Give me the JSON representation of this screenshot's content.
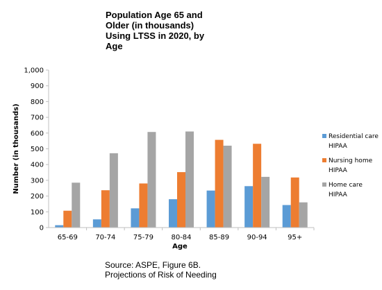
{
  "chart_data": {
    "type": "bar",
    "title_lines": [
      "Population Age 65 and",
      "Older (in thousands)",
      "Using LTSS in 2020, by",
      "Age"
    ],
    "xlabel": "Age",
    "ylabel": "Number (in thousands)",
    "ylim": [
      0,
      1000
    ],
    "yticks": [
      0,
      100,
      200,
      300,
      400,
      500,
      600,
      700,
      800,
      900,
      1000
    ],
    "ytick_labels": [
      "0",
      "100",
      "200",
      "300",
      "400",
      "500",
      "600",
      "700",
      "800",
      "900",
      "1,000"
    ],
    "categories": [
      "65-69",
      "70-74",
      "75-79",
      "80-84",
      "85-89",
      "90-94",
      "95+"
    ],
    "series": [
      {
        "name_lines": [
          "Residential care",
          "HIPAA"
        ],
        "color": "#5b9bd5",
        "values": [
          15,
          52,
          122,
          180,
          235,
          263,
          143
        ]
      },
      {
        "name_lines": [
          "Nursing home",
          "HIPAA"
        ],
        "color": "#ed7d31",
        "values": [
          107,
          237,
          280,
          352,
          557,
          532,
          318
        ]
      },
      {
        "name_lines": [
          "Home care",
          "HIPAA"
        ],
        "color": "#a5a5a5",
        "values": [
          285,
          472,
          607,
          610,
          520,
          322,
          160
        ]
      }
    ],
    "grid": false,
    "legend": "right"
  },
  "source_lines": [
    "Source: ASPE, Figure 6B.",
    "Projections of Risk of Needing"
  ]
}
